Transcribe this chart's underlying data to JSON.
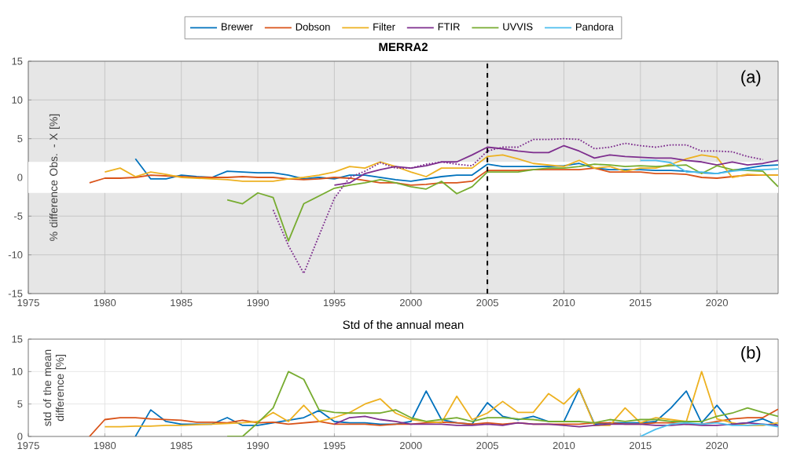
{
  "chart_data": [
    {
      "type": "line",
      "title": "MERRA2",
      "ylabel": "% difference Obs. - X [%]",
      "annotations": [
        "(a)"
      ],
      "x": [
        1979,
        1980,
        1981,
        1982,
        1983,
        1984,
        1985,
        1986,
        1987,
        1988,
        1989,
        1990,
        1991,
        1992,
        1993,
        1994,
        1995,
        1996,
        1997,
        1998,
        1999,
        2000,
        2001,
        2002,
        2003,
        2004,
        2005,
        2006,
        2007,
        2008,
        2009,
        2010,
        2011,
        2012,
        2013,
        2014,
        2015,
        2016,
        2017,
        2018,
        2019,
        2020,
        2021,
        2022,
        2023,
        2024
      ],
      "xlim": [
        1975,
        2024
      ],
      "xticks": [
        1975,
        1980,
        1985,
        1990,
        1995,
        2000,
        2005,
        2010,
        2015,
        2020
      ],
      "ylim": [
        -15,
        15
      ],
      "yticks": [
        -15,
        -10,
        -5,
        0,
        5,
        10,
        15
      ],
      "grid": true,
      "legend": "top",
      "bands": [
        {
          "axis": "y",
          "from": -2,
          "to": 2,
          "color": "#ffffff"
        }
      ],
      "ref_lines": [
        {
          "axis": "x",
          "value": 2005,
          "color": "#000000",
          "line_style": "dashed"
        }
      ],
      "series": [
        {
          "name": "Brewer",
          "color": "#0072bd",
          "values": [
            null,
            null,
            null,
            2.4,
            -0.2,
            -0.2,
            0.3,
            0.1,
            0,
            0.8,
            0.7,
            0.6,
            0.6,
            0.3,
            -0.2,
            0,
            -0.2,
            0.3,
            0.3,
            0,
            -0.3,
            -0.5,
            -0.2,
            0.1,
            0.3,
            0.3,
            1.7,
            1.4,
            1.4,
            1.4,
            1.4,
            1.5,
            1.8,
            1.2,
            1.0,
            1.0,
            1.0,
            0.9,
            0.9,
            0.8,
            0.6,
            0.5,
            0.9,
            1.2,
            1.5,
            1.6
          ]
        },
        {
          "name": "Dobson",
          "color": "#d95319",
          "values": [
            -0.7,
            -0.1,
            -0.1,
            0,
            0.3,
            0.2,
            0.1,
            0,
            0,
            0,
            0.1,
            0,
            0,
            -0.2,
            -0.3,
            -0.2,
            0,
            -0.1,
            -0.4,
            -0.7,
            -0.7,
            -1.0,
            -0.9,
            -0.7,
            -0.7,
            -0.5,
            0.9,
            0.9,
            0.9,
            1.0,
            1.0,
            1.0,
            1.0,
            1.2,
            0.7,
            0.7,
            0.7,
            0.5,
            0.5,
            0.4,
            0,
            -0.1,
            0.1,
            0.3,
            0.3,
            0.3
          ]
        },
        {
          "name": "Filter",
          "color": "#edb120",
          "values": [
            null,
            0.7,
            1.2,
            0.1,
            0.7,
            0.4,
            0,
            -0.1,
            -0.2,
            -0.3,
            -0.5,
            -0.5,
            -0.5,
            -0.2,
            0,
            0.3,
            0.7,
            1.4,
            1.2,
            2.0,
            1.4,
            0.7,
            0.1,
            1.2,
            1.2,
            1.2,
            2.7,
            2.9,
            2.4,
            1.8,
            1.6,
            1.4,
            2.2,
            1.2,
            1.4,
            0.8,
            1.2,
            1.2,
            1.7,
            2.4,
            2.9,
            2.6,
            0,
            0.4,
            0.3,
            0.3
          ]
        },
        {
          "name": "FTIR",
          "color": "#7e2f8e",
          "values": [
            null,
            null,
            null,
            null,
            null,
            null,
            null,
            null,
            null,
            null,
            null,
            null,
            null,
            null,
            null,
            null,
            -1.0,
            -0.7,
            0.5,
            1.0,
            1.4,
            1.2,
            1.5,
            2.0,
            2.0,
            2.9,
            3.9,
            3.7,
            3.4,
            3.2,
            3.2,
            4.1,
            3.4,
            2.5,
            2.9,
            2.7,
            2.6,
            2.5,
            2.5,
            2.2,
            2.0,
            1.6,
            2.0,
            1.6,
            1.8,
            2.2
          ]
        },
        {
          "name": "UVVIS",
          "color": "#77ac30",
          "values": [
            null,
            null,
            null,
            null,
            null,
            null,
            null,
            null,
            null,
            -2.9,
            -3.4,
            -2.0,
            -2.6,
            -8.2,
            -3.4,
            -2.4,
            -1.4,
            -1.0,
            -0.7,
            -0.3,
            -0.7,
            -1.2,
            -1.5,
            -0.5,
            -2.1,
            -1.2,
            0.7,
            0.7,
            0.7,
            1.0,
            1.2,
            1.2,
            1.4,
            1.7,
            1.6,
            1.4,
            1.5,
            1.4,
            1.5,
            1.6,
            0.5,
            1.5,
            1.0,
            0.9,
            0.8,
            -1.2
          ]
        },
        {
          "name": "Pandora",
          "color": "#4dbeee",
          "values": [
            null,
            null,
            null,
            null,
            null,
            null,
            null,
            null,
            null,
            null,
            null,
            null,
            null,
            null,
            null,
            null,
            null,
            null,
            null,
            null,
            null,
            null,
            null,
            null,
            null,
            null,
            null,
            null,
            null,
            null,
            null,
            null,
            null,
            null,
            null,
            null,
            2.2,
            2.2,
            1.9,
            0.7,
            0.7,
            0.5,
            0.8,
            1.0,
            1.0,
            1.1
          ]
        },
        {
          "color": "#7e2f8e",
          "line_style": "dotted",
          "values": [
            null,
            null,
            null,
            null,
            null,
            null,
            null,
            null,
            null,
            null,
            null,
            null,
            -4.2,
            -8.8,
            -12.4,
            -7.5,
            -2.7,
            0,
            0.8,
            1.9,
            1.2,
            1.2,
            1.7,
            2.0,
            1.7,
            1.5,
            3.4,
            3.9,
            3.9,
            4.9,
            4.9,
            5.0,
            4.9,
            3.7,
            3.9,
            4.4,
            4.1,
            3.9,
            4.2,
            4.2,
            3.4,
            3.4,
            3.3,
            2.7,
            2.3,
            null
          ]
        }
      ]
    },
    {
      "type": "line",
      "title": "Std of the annual mean",
      "ylabel": "std of the mean difference [%]",
      "annotations": [
        "(b)"
      ],
      "x": [
        1979,
        1980,
        1981,
        1982,
        1983,
        1984,
        1985,
        1986,
        1987,
        1988,
        1989,
        1990,
        1991,
        1992,
        1993,
        1994,
        1995,
        1996,
        1997,
        1998,
        1999,
        2000,
        2001,
        2002,
        2003,
        2004,
        2005,
        2006,
        2007,
        2008,
        2009,
        2010,
        2011,
        2012,
        2013,
        2014,
        2015,
        2016,
        2017,
        2018,
        2019,
        2020,
        2021,
        2022,
        2023,
        2024
      ],
      "xlim": [
        1975,
        2024
      ],
      "xticks": [
        1975,
        1980,
        1985,
        1990,
        1995,
        2000,
        2005,
        2010,
        2015,
        2020
      ],
      "ylim": [
        0,
        15
      ],
      "yticks": [
        0,
        5,
        10,
        15
      ],
      "grid": true,
      "series": [
        {
          "color": "#0072bd",
          "values": [
            null,
            null,
            null,
            0,
            4.1,
            2.3,
            1.9,
            1.9,
            1.9,
            2.9,
            1.7,
            1.7,
            2.1,
            2.5,
            2.9,
            4.0,
            2.3,
            2.1,
            2.1,
            1.9,
            1.9,
            2.3,
            7.0,
            2.6,
            2.1,
            1.9,
            5.2,
            3.1,
            2.6,
            3.1,
            2.3,
            2.3,
            7.3,
            1.9,
            2.1,
            2.1,
            2.1,
            2.3,
            4.4,
            7.0,
            2.1,
            4.8,
            1.9,
            2.1,
            2.7,
            1.7
          ]
        },
        {
          "color": "#d95319",
          "values": [
            0,
            2.6,
            2.9,
            2.9,
            2.7,
            2.6,
            2.5,
            2.2,
            2.2,
            2.1,
            2.5,
            2.1,
            2.2,
            1.9,
            2.1,
            2.3,
            1.9,
            1.9,
            1.9,
            1.7,
            1.9,
            1.9,
            2.1,
            2.2,
            2.1,
            1.9,
            2.1,
            1.9,
            2.1,
            1.9,
            1.9,
            1.9,
            1.9,
            2.1,
            2.1,
            1.9,
            1.9,
            2.1,
            2.1,
            1.9,
            1.9,
            2.3,
            2.7,
            2.9,
            2.9,
            4.2
          ]
        },
        {
          "color": "#edb120",
          "values": [
            null,
            1.5,
            1.5,
            1.6,
            1.6,
            1.7,
            1.7,
            1.8,
            1.9,
            2.0,
            2.1,
            2.3,
            3.7,
            2.3,
            4.8,
            2.3,
            2.9,
            3.7,
            5.0,
            5.8,
            3.6,
            2.6,
            2.3,
            2.1,
            6.2,
            2.6,
            3.6,
            5.4,
            3.7,
            3.7,
            6.6,
            5.0,
            7.4,
            1.7,
            1.7,
            4.4,
            2.1,
            2.9,
            2.6,
            2.3,
            10.0,
            2.7,
            2.1,
            1.7,
            1.7,
            2.1
          ]
        },
        {
          "color": "#7e2f8e",
          "values": [
            null,
            null,
            null,
            null,
            null,
            null,
            null,
            null,
            null,
            null,
            null,
            null,
            null,
            null,
            null,
            null,
            1.9,
            2.9,
            3.1,
            2.6,
            2.3,
            1.9,
            1.9,
            1.9,
            1.7,
            1.7,
            1.9,
            1.7,
            2.1,
            1.9,
            1.9,
            1.7,
            1.5,
            1.7,
            1.9,
            1.9,
            1.9,
            1.7,
            1.7,
            1.9,
            1.7,
            1.7,
            1.9,
            2.1,
            1.9,
            1.7
          ]
        },
        {
          "color": "#77ac30",
          "values": [
            null,
            null,
            null,
            null,
            null,
            null,
            null,
            null,
            null,
            0,
            0,
            2.1,
            4.4,
            10.0,
            8.8,
            4.1,
            3.7,
            3.6,
            3.6,
            3.6,
            4.1,
            2.9,
            2.3,
            2.6,
            2.9,
            2.3,
            2.9,
            2.9,
            2.7,
            2.6,
            2.3,
            2.3,
            2.3,
            2.1,
            2.6,
            2.3,
            2.6,
            2.6,
            2.3,
            2.3,
            2.3,
            3.1,
            3.6,
            4.4,
            3.7,
            3.1
          ]
        },
        {
          "color": "#4dbeee",
          "values": [
            null,
            null,
            null,
            null,
            null,
            null,
            null,
            null,
            null,
            null,
            null,
            null,
            null,
            null,
            null,
            null,
            null,
            null,
            null,
            null,
            null,
            null,
            null,
            null,
            null,
            null,
            null,
            null,
            null,
            null,
            null,
            null,
            null,
            null,
            null,
            null,
            0,
            1.1,
            1.9,
            2.1,
            1.9,
            2.1,
            1.7,
            1.7,
            1.9,
            1.5
          ]
        }
      ]
    }
  ]
}
